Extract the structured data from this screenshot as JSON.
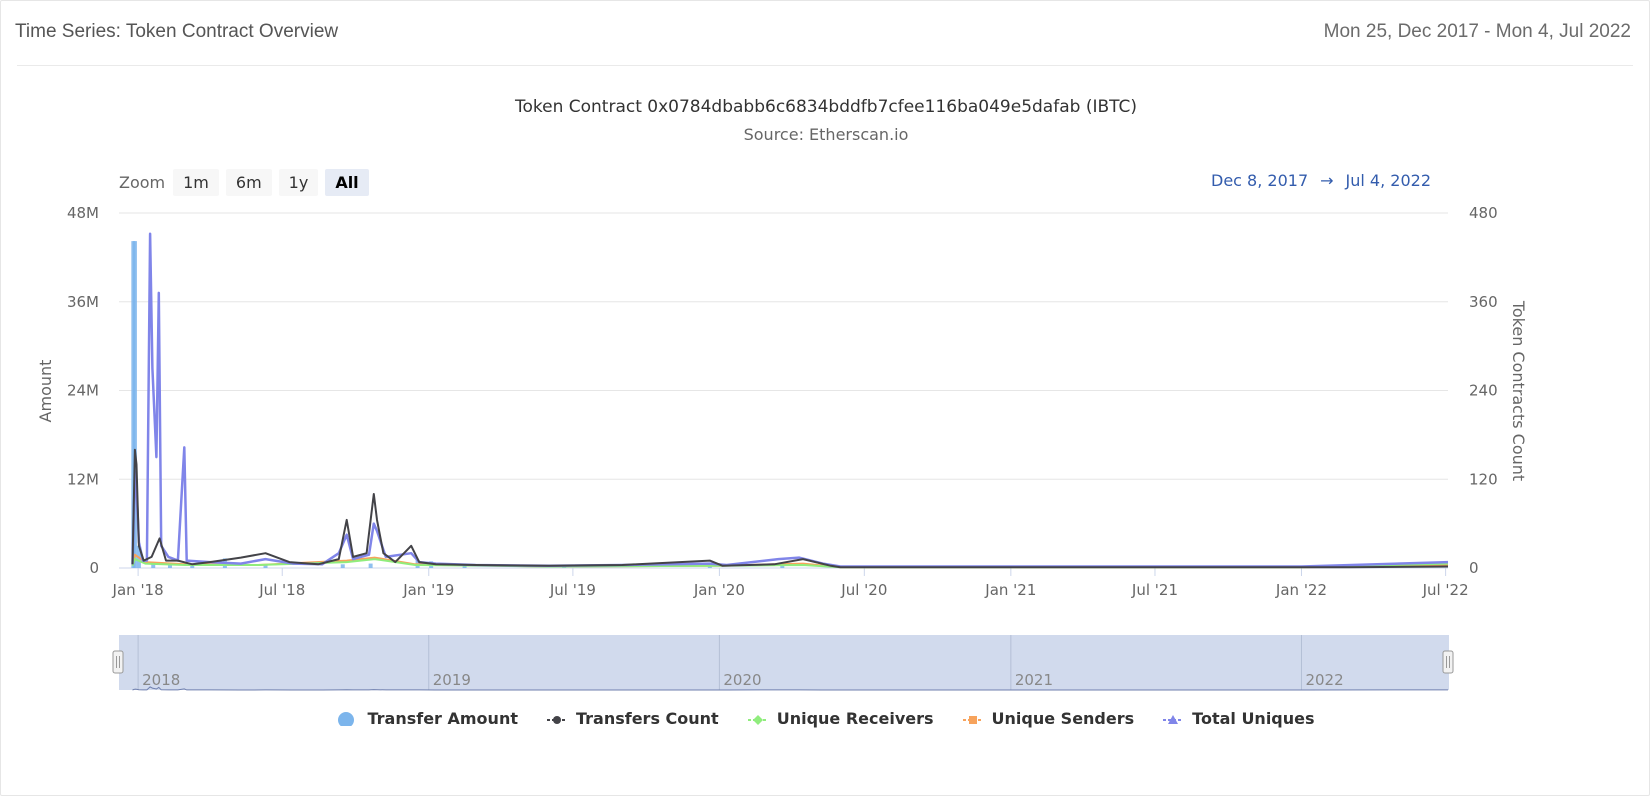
{
  "header": {
    "title": "Time Series: Token Contract Overview",
    "range": "Mon 25, Dec 2017 - Mon 4, Jul 2022"
  },
  "chart": {
    "title": "Token Contract 0x0784dbabb6c6834bddfb7cfee116ba049e5dafab (IBTC)",
    "subtitle": "Source: Etherscan.io",
    "zoom_label": "Zoom",
    "zoom_buttons": [
      "1m",
      "6m",
      "1y",
      "All"
    ],
    "zoom_selected": "All",
    "range_from": "Dec 8, 2017",
    "range_arrow": "→",
    "range_to": "Jul 4, 2022"
  },
  "colors": {
    "transfer_amount": "#7cb5ec",
    "transfers_count": "#434348",
    "unique_receivers": "#90ed7d",
    "unique_senders": "#f7a35c",
    "total_uniques": "#8085e9",
    "navigator_fill": "#ccd6eb"
  },
  "chart_data": {
    "type": "line",
    "title": "Token Contract 0x0784dbabb6c6834bddfb7cfee116ba049e5dafab (IBTC)",
    "subtitle": "Source: Etherscan.io",
    "y_left": {
      "label": "Amount",
      "ticks": [
        "0",
        "12M",
        "24M",
        "36M",
        "48M"
      ],
      "lim": [
        0,
        48000000
      ]
    },
    "y_right": {
      "label": "Token Contracts Count",
      "ticks": [
        "0",
        "120",
        "240",
        "360",
        "480"
      ],
      "lim": [
        0,
        480
      ]
    },
    "x_ticks": [
      "Jan '18",
      "Jul '18",
      "Jan '19",
      "Jul '19",
      "Jan '20",
      "Jul '20",
      "Jan '21",
      "Jul '21",
      "Jan '22",
      "Jul '22"
    ],
    "x_tick_dates": [
      "2018-01-01",
      "2018-07-01",
      "2019-01-01",
      "2019-07-01",
      "2020-01-01",
      "2020-07-01",
      "2021-01-01",
      "2021-07-01",
      "2022-01-01",
      "2022-07-01"
    ],
    "x_range": [
      "2017-12-08",
      "2022-07-04"
    ],
    "navigator_labels": [
      "2018",
      "2019",
      "2020",
      "2021",
      "2022"
    ],
    "grid": true,
    "legend_position": "bottom",
    "series": [
      {
        "name": "Transfer Amount",
        "axis": "left",
        "kind": "column",
        "points": [
          [
            "2017-12-26",
            44200000
          ],
          [
            "2017-12-28",
            44200000
          ],
          [
            "2018-01-02",
            3000000
          ],
          [
            "2018-01-20",
            600000
          ],
          [
            "2018-02-10",
            500000
          ],
          [
            "2018-03-10",
            400000
          ],
          [
            "2018-04-20",
            1300000
          ],
          [
            "2018-06-10",
            500000
          ],
          [
            "2018-09-15",
            500000
          ],
          [
            "2018-10-20",
            600000
          ],
          [
            "2018-12-18",
            1100000
          ],
          [
            "2019-01-04",
            900000
          ],
          [
            "2019-02-15",
            300000
          ],
          [
            "2019-06-20",
            200000
          ],
          [
            "2019-12-20",
            300000
          ],
          [
            "2020-03-20",
            500000
          ]
        ]
      },
      {
        "name": "Transfers Count",
        "axis": "right",
        "kind": "line",
        "points": [
          [
            "2017-12-25",
            5
          ],
          [
            "2017-12-28",
            160
          ],
          [
            "2017-12-30",
            140
          ],
          [
            "2018-01-02",
            30
          ],
          [
            "2018-01-08",
            10
          ],
          [
            "2018-01-18",
            15
          ],
          [
            "2018-01-28",
            40
          ],
          [
            "2018-02-05",
            10
          ],
          [
            "2018-02-20",
            10
          ],
          [
            "2018-03-10",
            5
          ],
          [
            "2018-04-01",
            8
          ],
          [
            "2018-05-10",
            14
          ],
          [
            "2018-06-10",
            20
          ],
          [
            "2018-07-10",
            8
          ],
          [
            "2018-08-15",
            5
          ],
          [
            "2018-09-10",
            12
          ],
          [
            "2018-09-20",
            65
          ],
          [
            "2018-09-28",
            15
          ],
          [
            "2018-10-15",
            20
          ],
          [
            "2018-10-24",
            100
          ],
          [
            "2018-10-28",
            65
          ],
          [
            "2018-11-05",
            20
          ],
          [
            "2018-11-20",
            8
          ],
          [
            "2018-12-10",
            30
          ],
          [
            "2018-12-20",
            8
          ],
          [
            "2019-01-10",
            5
          ],
          [
            "2019-03-01",
            4
          ],
          [
            "2019-06-01",
            3
          ],
          [
            "2019-09-01",
            4
          ],
          [
            "2019-12-20",
            10
          ],
          [
            "2020-01-05",
            3
          ],
          [
            "2020-03-10",
            5
          ],
          [
            "2020-04-15",
            12
          ],
          [
            "2020-05-20",
            3
          ],
          [
            "2020-06-01",
            1
          ],
          [
            "2021-06-01",
            1
          ],
          [
            "2022-03-01",
            1
          ],
          [
            "2022-07-04",
            2
          ]
        ]
      },
      {
        "name": "Unique Receivers",
        "axis": "right",
        "kind": "line",
        "points": [
          [
            "2017-12-25",
            3
          ],
          [
            "2017-12-28",
            12
          ],
          [
            "2018-01-10",
            6
          ],
          [
            "2018-03-01",
            4
          ],
          [
            "2018-06-01",
            4
          ],
          [
            "2018-09-20",
            8
          ],
          [
            "2018-10-25",
            12
          ],
          [
            "2018-12-15",
            4
          ],
          [
            "2019-06-01",
            2
          ],
          [
            "2020-01-01",
            3
          ],
          [
            "2020-04-15",
            4
          ],
          [
            "2020-06-01",
            1
          ],
          [
            "2021-06-01",
            1
          ],
          [
            "2022-01-01",
            1
          ],
          [
            "2022-07-04",
            6
          ]
        ]
      },
      {
        "name": "Unique Senders",
        "axis": "right",
        "kind": "line",
        "points": [
          [
            "2017-12-25",
            4
          ],
          [
            "2017-12-28",
            18
          ],
          [
            "2018-01-10",
            8
          ],
          [
            "2018-03-01",
            5
          ],
          [
            "2018-06-01",
            4
          ],
          [
            "2018-09-20",
            10
          ],
          [
            "2018-10-25",
            14
          ],
          [
            "2018-12-15",
            5
          ],
          [
            "2019-06-01",
            2
          ],
          [
            "2020-01-01",
            3
          ],
          [
            "2020-04-15",
            6
          ],
          [
            "2020-06-01",
            1
          ],
          [
            "2021-06-01",
            1
          ],
          [
            "2022-01-01",
            1
          ],
          [
            "2022-07-04",
            4
          ]
        ]
      },
      {
        "name": "Total Uniques",
        "axis": "right",
        "kind": "line",
        "points": [
          [
            "2017-12-25",
            5
          ],
          [
            "2017-12-27",
            90
          ],
          [
            "2017-12-29",
            130
          ],
          [
            "2018-01-02",
            35
          ],
          [
            "2018-01-07",
            10
          ],
          [
            "2018-01-12",
            10
          ],
          [
            "2018-01-16",
            452
          ],
          [
            "2018-01-19",
            270
          ],
          [
            "2018-01-24",
            150
          ],
          [
            "2018-01-27",
            372
          ],
          [
            "2018-01-30",
            30
          ],
          [
            "2018-02-08",
            15
          ],
          [
            "2018-02-20",
            10
          ],
          [
            "2018-02-28",
            163
          ],
          [
            "2018-03-03",
            10
          ],
          [
            "2018-04-01",
            8
          ],
          [
            "2018-05-10",
            6
          ],
          [
            "2018-06-10",
            12
          ],
          [
            "2018-07-15",
            6
          ],
          [
            "2018-08-20",
            5
          ],
          [
            "2018-09-10",
            20
          ],
          [
            "2018-09-20",
            45
          ],
          [
            "2018-09-28",
            12
          ],
          [
            "2018-10-18",
            18
          ],
          [
            "2018-10-24",
            60
          ],
          [
            "2018-10-28",
            50
          ],
          [
            "2018-11-08",
            15
          ],
          [
            "2018-12-10",
            20
          ],
          [
            "2018-12-20",
            8
          ],
          [
            "2019-01-10",
            6
          ],
          [
            "2019-03-01",
            4
          ],
          [
            "2019-06-01",
            3
          ],
          [
            "2019-09-01",
            4
          ],
          [
            "2019-12-20",
            6
          ],
          [
            "2020-01-10",
            4
          ],
          [
            "2020-03-15",
            12
          ],
          [
            "2020-04-10",
            14
          ],
          [
            "2020-05-10",
            6
          ],
          [
            "2020-06-01",
            2
          ],
          [
            "2021-06-01",
            2
          ],
          [
            "2022-01-01",
            2
          ],
          [
            "2022-07-04",
            8
          ]
        ]
      }
    ]
  }
}
